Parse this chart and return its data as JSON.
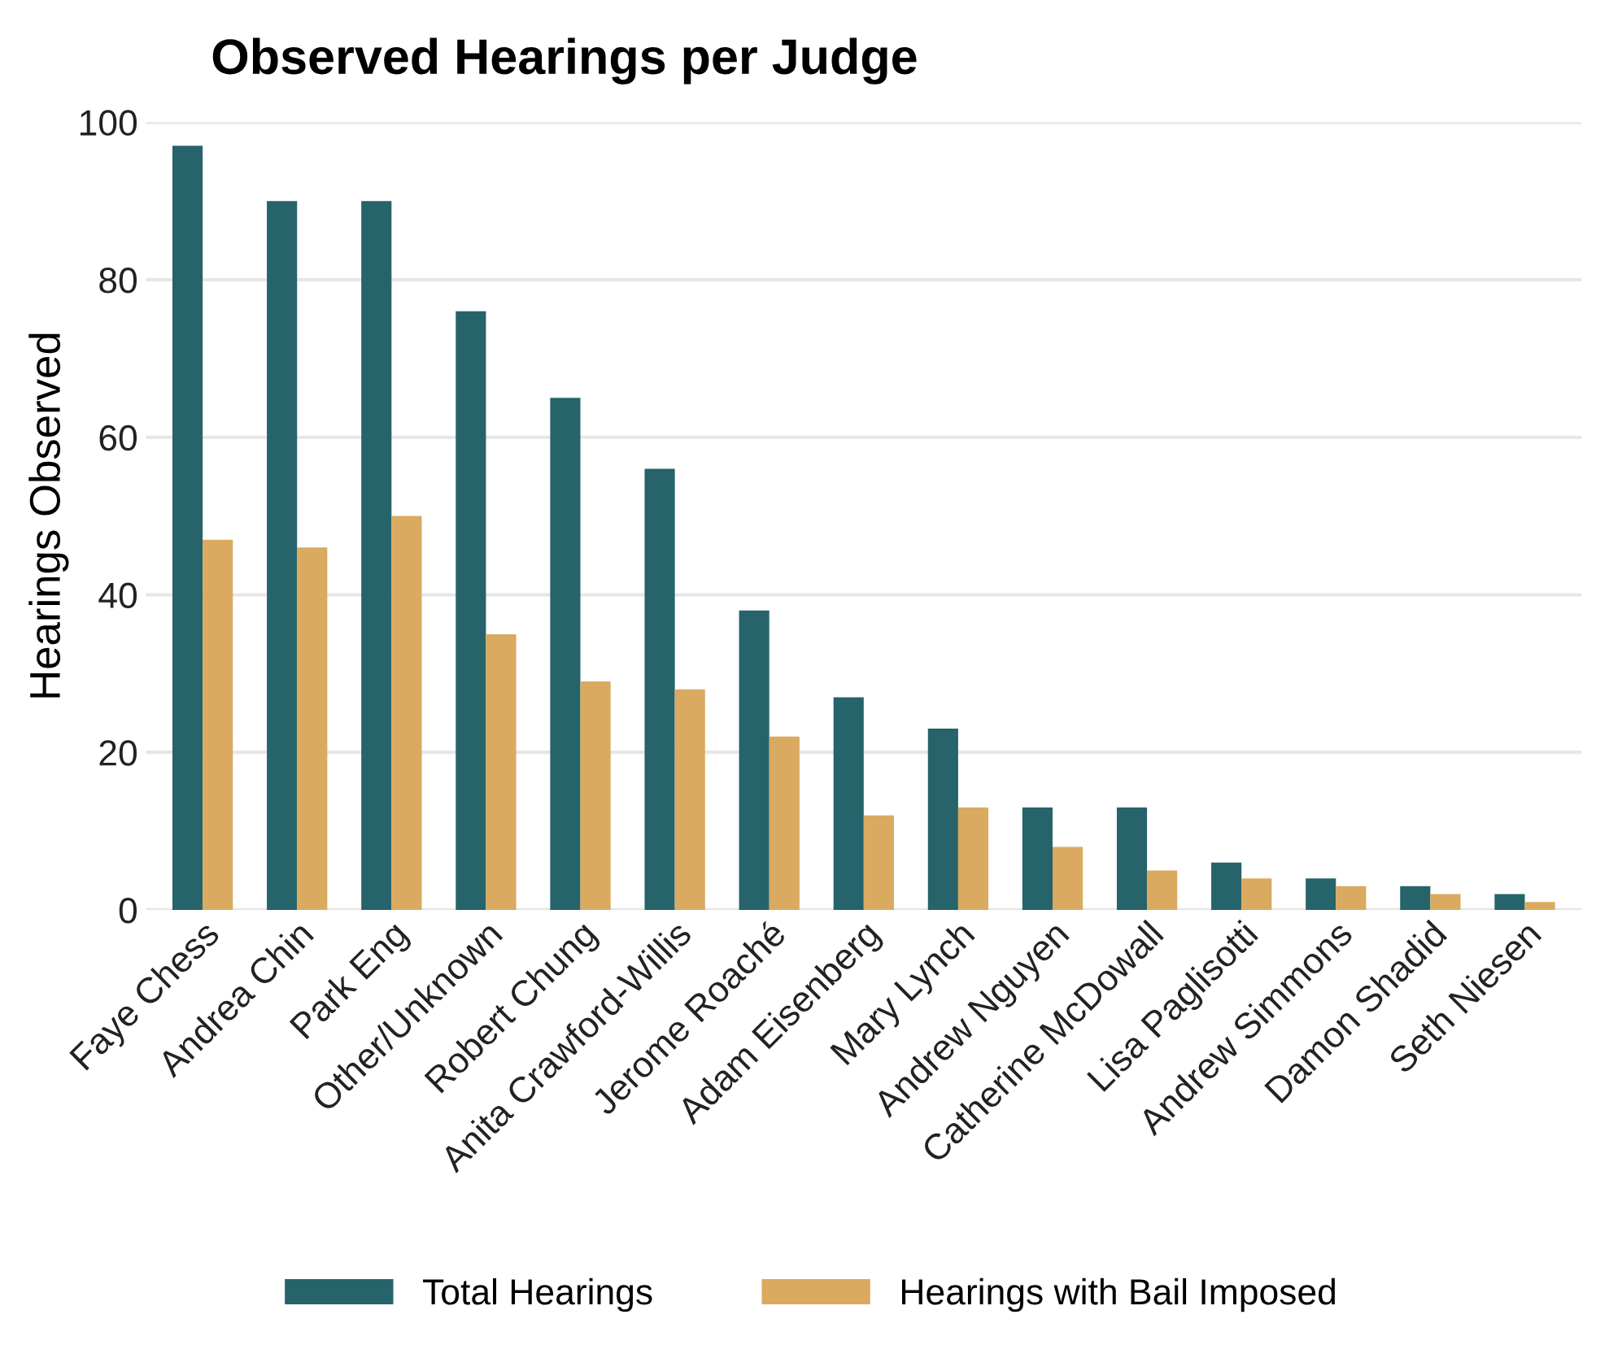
{
  "chart_data": {
    "type": "bar",
    "title": "Observed Hearings per Judge",
    "ylabel": "Hearings Observed",
    "categories": [
      "Faye Chess",
      "Andrea Chin",
      "Park Eng",
      "Other/Unknown",
      "Robert Chung",
      "Anita Crawford-Willis",
      "Jerome Roaché",
      "Adam Eisenberg",
      "Mary Lynch",
      "Andrew Nguyen",
      "Catherine McDowall",
      "Lisa Paglisotti",
      "Andrew Simmons",
      "Damon Shadid",
      "Seth Niesen"
    ],
    "series": [
      {
        "name": "Total Hearings",
        "color": "#26636b",
        "values": [
          97,
          90,
          90,
          76,
          65,
          56,
          38,
          27,
          23,
          13,
          13,
          6,
          4,
          3,
          2
        ]
      },
      {
        "name": "Hearings with Bail Imposed",
        "color": "#d9aa5f",
        "values": [
          47,
          46,
          50,
          35,
          29,
          28,
          22,
          12,
          13,
          8,
          5,
          4,
          3,
          2,
          1
        ]
      }
    ],
    "ylim": [
      0,
      100
    ],
    "yticks": [
      0,
      20,
      40,
      60,
      80,
      100
    ],
    "grid": "y",
    "legend": "bottom"
  }
}
